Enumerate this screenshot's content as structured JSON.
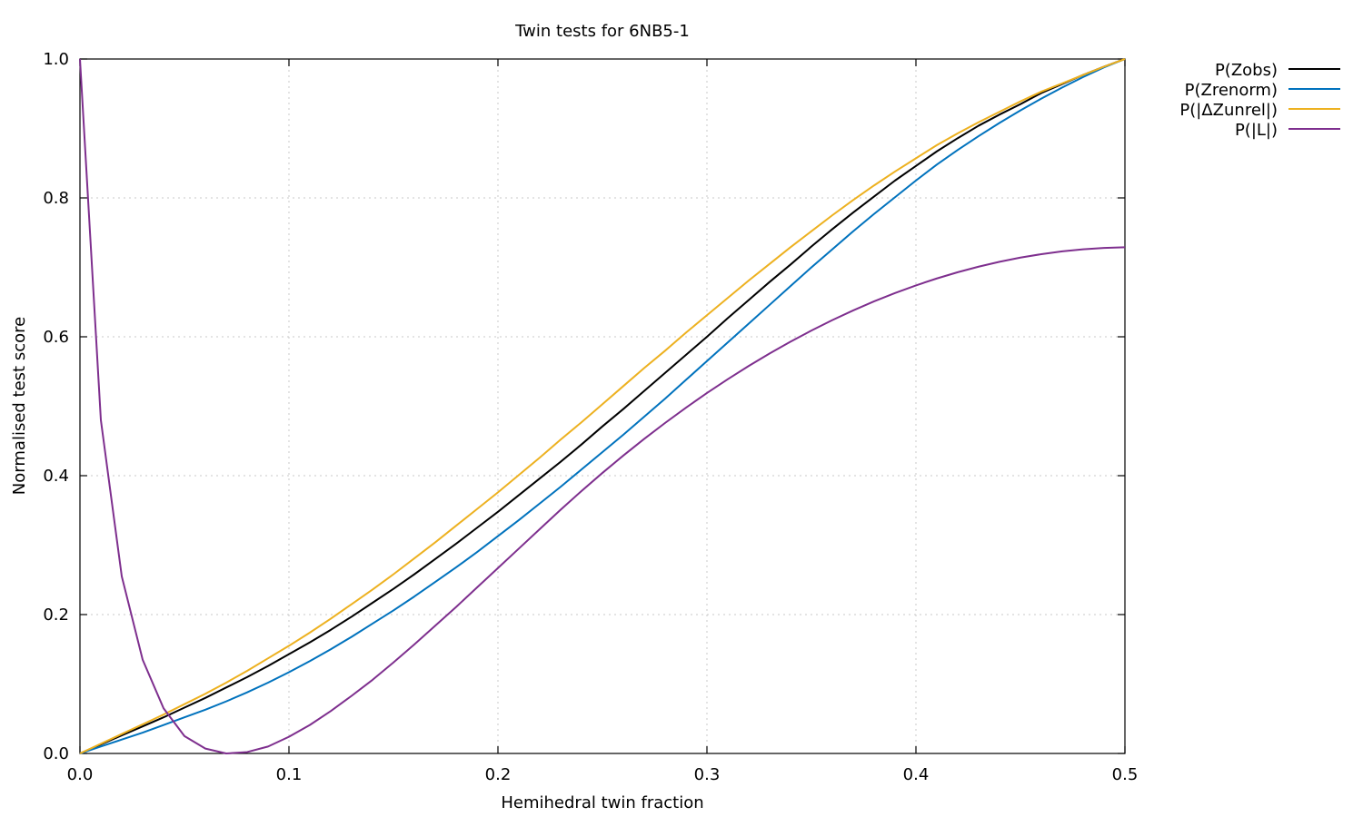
{
  "chart_data": {
    "type": "line",
    "title": "Twin tests for 6NB5-1",
    "xlabel": "Hemihedral twin fraction",
    "ylabel": "Normalised test score",
    "xlim": [
      0.0,
      0.5
    ],
    "ylim": [
      0.0,
      1.0
    ],
    "xticks": [
      "0.0",
      "0.1",
      "0.2",
      "0.3",
      "0.4",
      "0.5"
    ],
    "yticks": [
      "0.0",
      "0.2",
      "0.4",
      "0.6",
      "0.8",
      "1.0"
    ],
    "grid": true,
    "legend_position": "outside-top-right",
    "x": [
      0.0,
      0.01,
      0.02,
      0.03,
      0.04,
      0.05,
      0.06,
      0.07,
      0.08,
      0.09,
      0.1,
      0.11,
      0.12,
      0.13,
      0.14,
      0.15,
      0.16,
      0.17,
      0.18,
      0.19,
      0.2,
      0.21,
      0.22,
      0.23,
      0.24,
      0.25,
      0.26,
      0.27,
      0.28,
      0.29,
      0.3,
      0.31,
      0.32,
      0.33,
      0.34,
      0.35,
      0.36,
      0.37,
      0.38,
      0.39,
      0.4,
      0.41,
      0.42,
      0.43,
      0.44,
      0.45,
      0.46,
      0.47,
      0.48,
      0.49,
      0.5
    ],
    "series": [
      {
        "name": "P(Zobs)",
        "color": "#000000",
        "values": [
          0.0,
          0.013,
          0.026,
          0.039,
          0.052,
          0.066,
          0.08,
          0.095,
          0.11,
          0.126,
          0.143,
          0.16,
          0.178,
          0.197,
          0.217,
          0.237,
          0.258,
          0.28,
          0.302,
          0.325,
          0.348,
          0.372,
          0.396,
          0.42,
          0.445,
          0.471,
          0.496,
          0.522,
          0.548,
          0.574,
          0.6,
          0.627,
          0.653,
          0.679,
          0.704,
          0.73,
          0.755,
          0.779,
          0.802,
          0.825,
          0.846,
          0.867,
          0.886,
          0.904,
          0.92,
          0.935,
          0.951,
          0.964,
          0.977,
          0.989,
          1.0
        ]
      },
      {
        "name": "P(Zrenorm)",
        "color": "#0072bd",
        "values": [
          0.0,
          0.01,
          0.02,
          0.03,
          0.041,
          0.052,
          0.063,
          0.075,
          0.088,
          0.102,
          0.117,
          0.133,
          0.15,
          0.168,
          0.187,
          0.206,
          0.226,
          0.247,
          0.268,
          0.29,
          0.313,
          0.336,
          0.36,
          0.384,
          0.409,
          0.434,
          0.459,
          0.485,
          0.511,
          0.538,
          0.565,
          0.592,
          0.619,
          0.646,
          0.673,
          0.7,
          0.726,
          0.752,
          0.777,
          0.801,
          0.825,
          0.848,
          0.869,
          0.889,
          0.908,
          0.926,
          0.943,
          0.959,
          0.974,
          0.988,
          1.0
        ]
      },
      {
        "name": "P(|ΔZunrel|)",
        "color": "#edb120",
        "values": [
          0.0,
          0.014,
          0.028,
          0.042,
          0.056,
          0.071,
          0.086,
          0.102,
          0.119,
          0.137,
          0.155,
          0.174,
          0.194,
          0.215,
          0.236,
          0.258,
          0.281,
          0.304,
          0.328,
          0.352,
          0.376,
          0.401,
          0.426,
          0.452,
          0.477,
          0.503,
          0.529,
          0.555,
          0.58,
          0.606,
          0.631,
          0.656,
          0.681,
          0.705,
          0.729,
          0.752,
          0.775,
          0.797,
          0.818,
          0.838,
          0.857,
          0.876,
          0.893,
          0.909,
          0.924,
          0.939,
          0.953,
          0.965,
          0.977,
          0.989,
          1.0
        ]
      },
      {
        "name": "P(|L|)",
        "color": "#7e2f8e",
        "values": [
          1.0,
          0.48,
          0.255,
          0.135,
          0.065,
          0.025,
          0.007,
          0.0,
          0.002,
          0.01,
          0.024,
          0.041,
          0.061,
          0.083,
          0.106,
          0.131,
          0.157,
          0.184,
          0.211,
          0.239,
          0.267,
          0.295,
          0.323,
          0.351,
          0.378,
          0.404,
          0.429,
          0.453,
          0.476,
          0.498,
          0.519,
          0.539,
          0.558,
          0.576,
          0.593,
          0.609,
          0.624,
          0.638,
          0.651,
          0.663,
          0.674,
          0.684,
          0.693,
          0.701,
          0.708,
          0.714,
          0.719,
          0.723,
          0.726,
          0.728,
          0.729
        ]
      }
    ]
  }
}
